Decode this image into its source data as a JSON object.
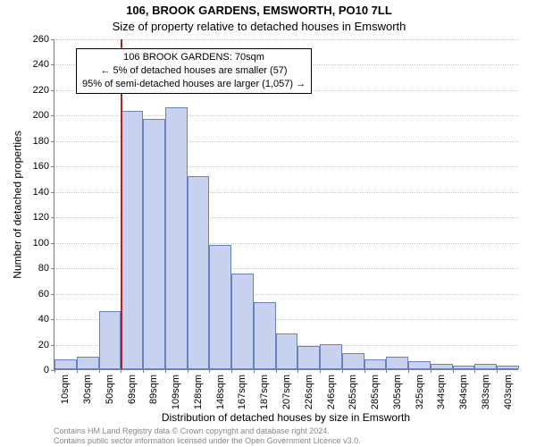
{
  "titles": {
    "address": "106, BROOK GARDENS, EMSWORTH, PO10 7LL",
    "subtitle": "Size of property relative to detached houses in Emsworth"
  },
  "axes": {
    "ylabel": "Number of detached properties",
    "xlabel": "Distribution of detached houses by size in Emsworth",
    "ylim": [
      0,
      260
    ],
    "ytick_step": 20,
    "ytick_fontsize": 11,
    "xtick_fontsize": 11,
    "label_fontsize": 12,
    "axis_color": "#808080",
    "grid_color": "#c8c8c8"
  },
  "chart": {
    "type": "histogram",
    "bar_fill": "#c8d2ee",
    "bar_border": "#6a80c0",
    "background_color": "#ffffff",
    "x_labels": [
      "10sqm",
      "30sqm",
      "50sqm",
      "69sqm",
      "89sqm",
      "109sqm",
      "128sqm",
      "148sqm",
      "167sqm",
      "187sqm",
      "207sqm",
      "226sqm",
      "246sqm",
      "265sqm",
      "285sqm",
      "305sqm",
      "325sqm",
      "344sqm",
      "364sqm",
      "383sqm",
      "403sqm"
    ],
    "values": [
      8,
      10,
      46,
      203,
      197,
      206,
      152,
      98,
      75,
      53,
      28,
      18,
      20,
      13,
      8,
      10,
      6,
      4,
      3,
      4,
      3
    ],
    "marker_index": 3,
    "marker_color": "#b22222"
  },
  "annotation": {
    "line1": "106 BROOK GARDENS: 70sqm",
    "line2": "← 5% of detached houses are smaller (57)",
    "line3": "95% of semi-detached houses are larger (1,057) →",
    "border_color": "#000000"
  },
  "footer": {
    "line1": "Contains HM Land Registry data © Crown copyright and database right 2024.",
    "line2": "Contains public sector information licensed under the Open Government Licence v3.0.",
    "color": "#888888"
  }
}
